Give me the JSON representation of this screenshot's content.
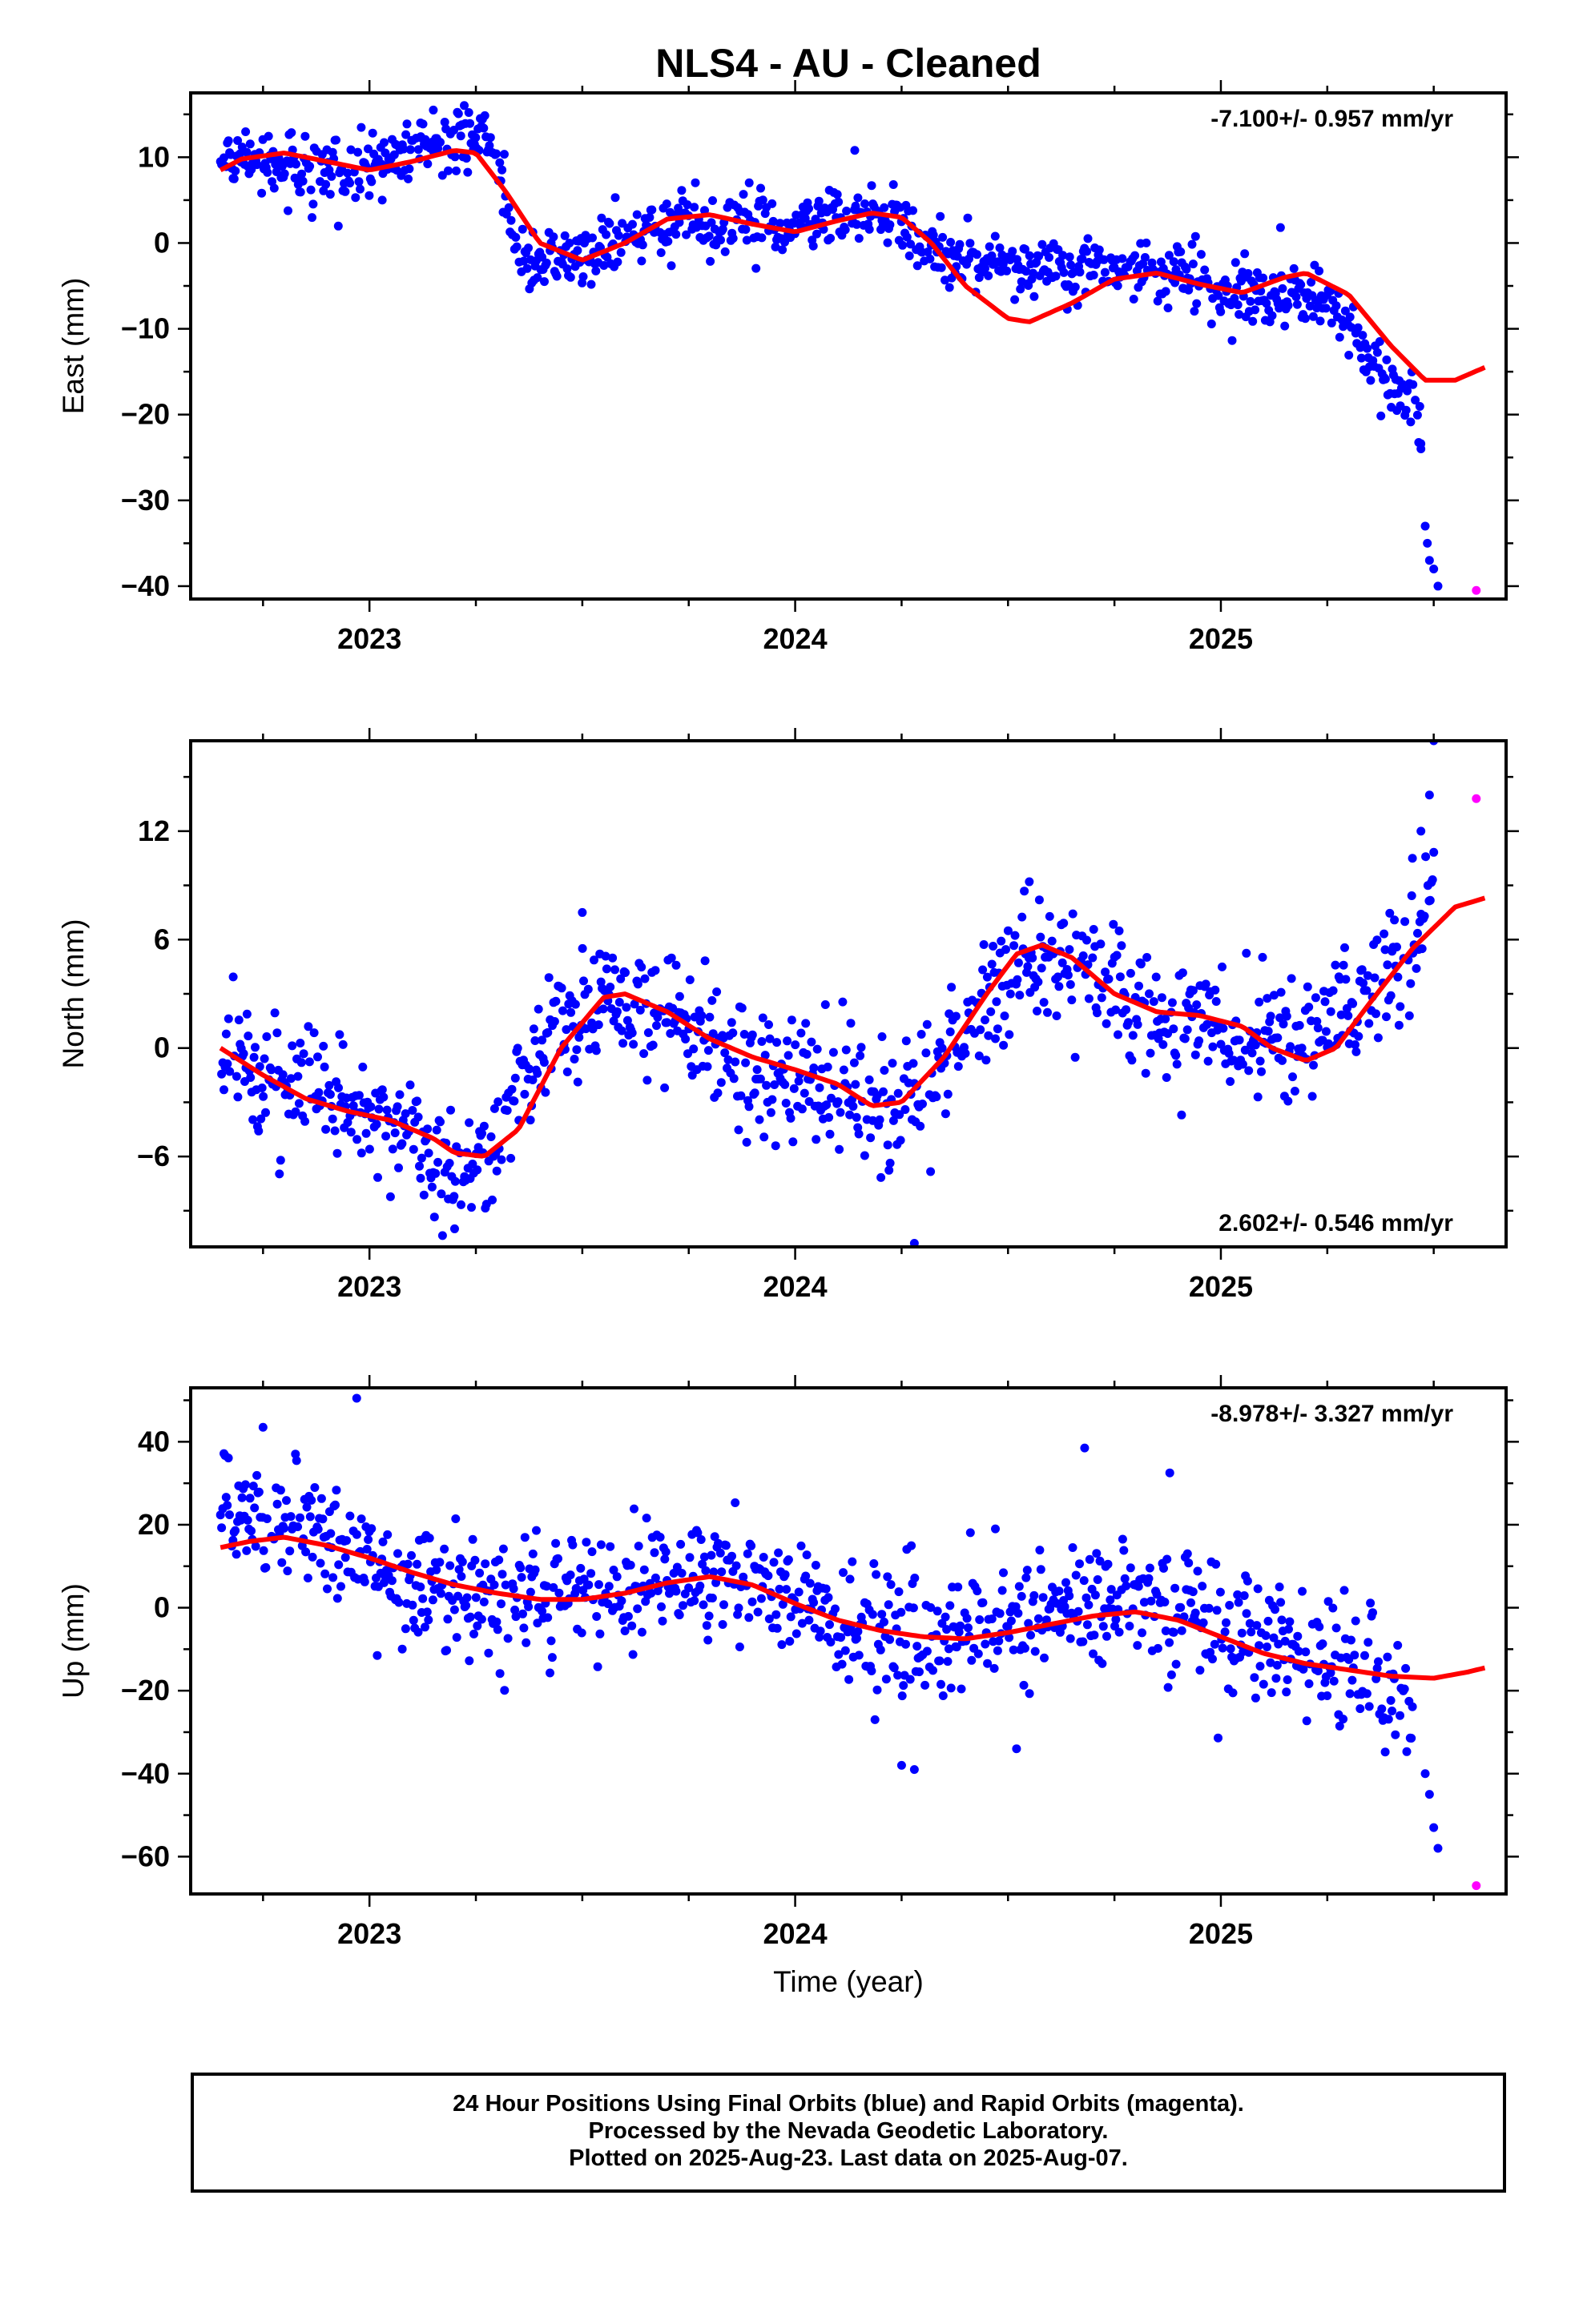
{
  "title": "NLS4  - AU - Cleaned",
  "xlabel": "Time (year)",
  "caption": [
    "24 Hour Positions Using Final Orbits (blue) and Rapid Orbits (magenta).",
    "Processed by the Nevada Geodetic Laboratory.",
    "Plotted on 2025-Aug-23. Last data on 2025-Aug-07."
  ],
  "colors": {
    "final": "#0000ff",
    "rapid": "#ff00ff",
    "model": "#ff0000",
    "axis": "#000000"
  },
  "chart_data": [
    {
      "type": "scatter",
      "ylabel": "East (mm)",
      "rate_label": "-7.100+/- 0.957 mm/yr",
      "rate_position": "top-right",
      "xlim": [
        2022.58,
        2025.67
      ],
      "ylim": [
        -41.5,
        17.5
      ],
      "xticks": [
        2023,
        2024,
        2025
      ],
      "yticks": [
        -40,
        -30,
        -20,
        -10,
        0,
        10
      ],
      "grid": false,
      "scatter_knots": [
        [
          2022.65,
          9.5
        ],
        [
          2022.75,
          9.5
        ],
        [
          2022.9,
          8
        ],
        [
          2023.0,
          9
        ],
        [
          2023.1,
          11
        ],
        [
          2023.2,
          12
        ],
        [
          2023.27,
          12
        ],
        [
          2023.3,
          10
        ],
        [
          2023.35,
          -2
        ],
        [
          2023.5,
          -2
        ],
        [
          2023.6,
          0.5
        ],
        [
          2023.75,
          3
        ],
        [
          2023.9,
          2
        ],
        [
          2024.0,
          2.5
        ],
        [
          2024.15,
          3
        ],
        [
          2024.25,
          3
        ],
        [
          2024.32,
          -1
        ],
        [
          2024.5,
          -3
        ],
        [
          2024.7,
          -3
        ],
        [
          2024.9,
          -3
        ],
        [
          2025.0,
          -6
        ],
        [
          2025.15,
          -6
        ],
        [
          2025.25,
          -7
        ],
        [
          2025.33,
          -12
        ],
        [
          2025.42,
          -17
        ],
        [
          2025.47,
          -21
        ]
      ],
      "scatter_noise": 1.8,
      "outliers": [
        [
          2023.03,
          5
        ],
        [
          2023.12,
          14
        ],
        [
          2023.15,
          15.5
        ],
        [
          2024.14,
          10.8
        ],
        [
          2025.14,
          1.8
        ],
        [
          2025.47,
          -24
        ],
        [
          2025.48,
          -33
        ],
        [
          2025.485,
          -35
        ],
        [
          2025.49,
          -37
        ],
        [
          2025.5,
          -38
        ],
        [
          2025.51,
          -40
        ]
      ],
      "rapid_points": [
        [
          2025.6,
          -40.5
        ]
      ],
      "model_curve": [
        [
          2022.65,
          8.5
        ],
        [
          2022.7,
          9.8
        ],
        [
          2022.8,
          10.5
        ],
        [
          2022.9,
          9.5
        ],
        [
          2023.0,
          8.5
        ],
        [
          2023.1,
          9.5
        ],
        [
          2023.2,
          10.8
        ],
        [
          2023.25,
          10.5
        ],
        [
          2023.32,
          6
        ],
        [
          2023.4,
          0
        ],
        [
          2023.5,
          -2
        ],
        [
          2023.6,
          0
        ],
        [
          2023.7,
          2.8
        ],
        [
          2023.8,
          3.3
        ],
        [
          2023.9,
          2.2
        ],
        [
          2024.0,
          1.3
        ],
        [
          2024.1,
          2.6
        ],
        [
          2024.18,
          3.5
        ],
        [
          2024.25,
          3
        ],
        [
          2024.32,
          0
        ],
        [
          2024.4,
          -5
        ],
        [
          2024.5,
          -8.8
        ],
        [
          2024.55,
          -9.2
        ],
        [
          2024.65,
          -7
        ],
        [
          2024.75,
          -4.2
        ],
        [
          2024.85,
          -3.5
        ],
        [
          2024.95,
          -4.8
        ],
        [
          2025.05,
          -5.8
        ],
        [
          2025.15,
          -4
        ],
        [
          2025.2,
          -3.5
        ],
        [
          2025.3,
          -6
        ],
        [
          2025.4,
          -12
        ],
        [
          2025.48,
          -16
        ],
        [
          2025.55,
          -16
        ],
        [
          2025.62,
          -14.5
        ]
      ]
    },
    {
      "type": "scatter",
      "ylabel": "North (mm)",
      "rate_label": "2.602+/- 0.546 mm/yr",
      "rate_position": "bottom-right",
      "xlim": [
        2022.58,
        2025.67
      ],
      "ylim": [
        -11,
        17
      ],
      "xticks": [
        2023,
        2024,
        2025
      ],
      "yticks": [
        -6,
        0,
        6,
        12
      ],
      "grid": false,
      "scatter_knots": [
        [
          2022.65,
          0
        ],
        [
          2022.8,
          -2
        ],
        [
          2022.95,
          -3
        ],
        [
          2023.1,
          -5
        ],
        [
          2023.2,
          -6.5
        ],
        [
          2023.28,
          -6
        ],
        [
          2023.35,
          -2
        ],
        [
          2023.45,
          1.5
        ],
        [
          2023.55,
          2.5
        ],
        [
          2023.65,
          2
        ],
        [
          2023.8,
          0.5
        ],
        [
          2023.95,
          -1.5
        ],
        [
          2024.1,
          -2
        ],
        [
          2024.2,
          -4
        ],
        [
          2024.3,
          -2
        ],
        [
          2024.45,
          3
        ],
        [
          2024.55,
          4.5
        ],
        [
          2024.7,
          5
        ],
        [
          2024.8,
          2
        ],
        [
          2024.95,
          1
        ],
        [
          2025.1,
          0.5
        ],
        [
          2025.25,
          1
        ],
        [
          2025.35,
          2.5
        ],
        [
          2025.45,
          6
        ],
        [
          2025.5,
          8
        ]
      ],
      "scatter_noise": 1.7,
      "outliers": [
        [
          2023.2,
          -10
        ],
        [
          2023.5,
          7.5
        ],
        [
          2024.28,
          -10.8
        ],
        [
          2024.55,
          9.2
        ],
        [
          2025.45,
          10.5
        ],
        [
          2025.47,
          12
        ],
        [
          2025.49,
          14
        ],
        [
          2025.5,
          17
        ]
      ],
      "rapid_points": [
        [
          2025.6,
          13.8
        ]
      ],
      "model_curve": [
        [
          2022.65,
          0
        ],
        [
          2022.75,
          -1.5
        ],
        [
          2022.85,
          -2.8
        ],
        [
          2022.95,
          -3.5
        ],
        [
          2023.05,
          -4
        ],
        [
          2023.15,
          -5
        ],
        [
          2023.2,
          -5.8
        ],
        [
          2023.27,
          -6
        ],
        [
          2023.35,
          -4.5
        ],
        [
          2023.45,
          0
        ],
        [
          2023.55,
          2.8
        ],
        [
          2023.6,
          3
        ],
        [
          2023.7,
          2
        ],
        [
          2023.8,
          0.5
        ],
        [
          2023.9,
          -0.5
        ],
        [
          2024.0,
          -1.2
        ],
        [
          2024.1,
          -2
        ],
        [
          2024.18,
          -3.2
        ],
        [
          2024.25,
          -3
        ],
        [
          2024.35,
          -0.5
        ],
        [
          2024.45,
          3
        ],
        [
          2024.52,
          5.2
        ],
        [
          2024.58,
          5.7
        ],
        [
          2024.65,
          5
        ],
        [
          2024.75,
          3
        ],
        [
          2024.85,
          2
        ],
        [
          2024.95,
          1.8
        ],
        [
          2025.05,
          1.2
        ],
        [
          2025.12,
          0
        ],
        [
          2025.2,
          -0.7
        ],
        [
          2025.27,
          0
        ],
        [
          2025.35,
          2.5
        ],
        [
          2025.45,
          5.5
        ],
        [
          2025.55,
          7.8
        ],
        [
          2025.62,
          8.3
        ]
      ]
    },
    {
      "type": "scatter",
      "ylabel": "Up (mm)",
      "rate_label": "-8.978+/- 3.327 mm/yr",
      "rate_position": "top-right",
      "xlim": [
        2022.58,
        2025.67
      ],
      "ylim": [
        -69,
        53
      ],
      "xticks": [
        2023,
        2024,
        2025
      ],
      "yticks": [
        -60,
        -40,
        -20,
        0,
        20,
        40
      ],
      "grid": false,
      "scatter_knots": [
        [
          2022.65,
          27
        ],
        [
          2022.8,
          20
        ],
        [
          2022.95,
          14
        ],
        [
          2023.1,
          5
        ],
        [
          2023.3,
          3
        ],
        [
          2023.5,
          3
        ],
        [
          2023.7,
          8
        ],
        [
          2023.85,
          9
        ],
        [
          2024.0,
          2
        ],
        [
          2024.15,
          -5
        ],
        [
          2024.3,
          -8
        ],
        [
          2024.5,
          -5
        ],
        [
          2024.7,
          -1
        ],
        [
          2024.85,
          3
        ],
        [
          2025.0,
          -6
        ],
        [
          2025.15,
          -9
        ],
        [
          2025.3,
          -14
        ],
        [
          2025.45,
          -20
        ]
      ],
      "scatter_noise": 7.5,
      "outliers": [
        [
          2022.75,
          43.5
        ],
        [
          2022.97,
          50.5
        ],
        [
          2024.25,
          -38
        ],
        [
          2024.28,
          -39
        ],
        [
          2024.52,
          -34
        ],
        [
          2024.68,
          38.5
        ],
        [
          2024.88,
          32.5
        ],
        [
          2025.48,
          -40
        ],
        [
          2025.49,
          -45
        ],
        [
          2025.5,
          -53
        ],
        [
          2025.51,
          -58
        ]
      ],
      "rapid_points": [
        [
          2025.6,
          -67
        ]
      ],
      "model_curve": [
        [
          2022.65,
          14.5
        ],
        [
          2022.72,
          16
        ],
        [
          2022.8,
          17
        ],
        [
          2022.9,
          15
        ],
        [
          2023.0,
          12
        ],
        [
          2023.1,
          8.5
        ],
        [
          2023.2,
          5.5
        ],
        [
          2023.3,
          3.5
        ],
        [
          2023.4,
          2
        ],
        [
          2023.5,
          2
        ],
        [
          2023.6,
          3.5
        ],
        [
          2023.7,
          6
        ],
        [
          2023.8,
          7.5
        ],
        [
          2023.9,
          5.5
        ],
        [
          2024.0,
          1
        ],
        [
          2024.1,
          -3
        ],
        [
          2024.2,
          -5.5
        ],
        [
          2024.3,
          -7
        ],
        [
          2024.4,
          -7.5
        ],
        [
          2024.5,
          -6
        ],
        [
          2024.6,
          -4
        ],
        [
          2024.7,
          -2
        ],
        [
          2024.8,
          -1
        ],
        [
          2024.9,
          -3
        ],
        [
          2025.0,
          -7
        ],
        [
          2025.1,
          -11
        ],
        [
          2025.2,
          -13.5
        ],
        [
          2025.3,
          -15
        ],
        [
          2025.4,
          -16.5
        ],
        [
          2025.5,
          -17
        ],
        [
          2025.58,
          -15.5
        ],
        [
          2025.62,
          -14.5
        ]
      ]
    }
  ]
}
